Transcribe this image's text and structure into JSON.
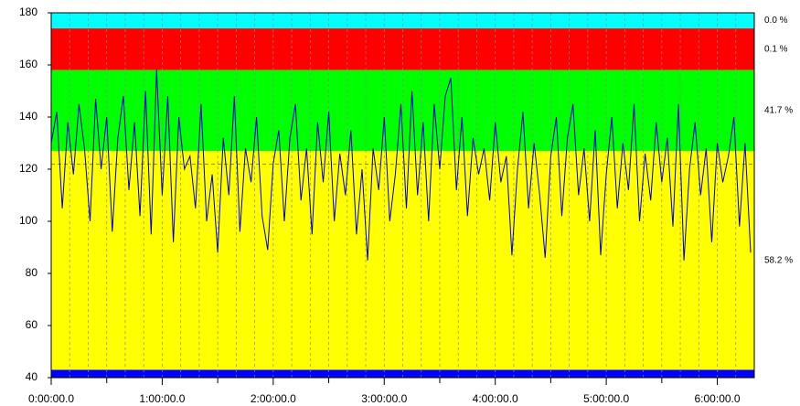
{
  "chart_data": {
    "type": "line",
    "xlim": [
      0,
      22800
    ],
    "ylim": [
      40,
      180
    ],
    "yticks": [
      40,
      60,
      80,
      100,
      120,
      140,
      160,
      180
    ],
    "xticks": [
      {
        "value": 0,
        "label": "0:00:00.0"
      },
      {
        "value": 3600,
        "label": "1:00:00.0"
      },
      {
        "value": 7200,
        "label": "2:00:00.0"
      },
      {
        "value": 10800,
        "label": "3:00:00.0"
      },
      {
        "value": 14400,
        "label": "4:00:00.0"
      },
      {
        "value": 18000,
        "label": "5:00:00.0"
      },
      {
        "value": 21600,
        "label": "6:00:00.0"
      }
    ],
    "xminor": [
      1800,
      5400,
      9000,
      12600,
      16200,
      19800
    ],
    "x_gridlines": [
      600,
      1200,
      1800,
      2400,
      3000,
      3600,
      4200,
      4800,
      5400,
      6000,
      6600,
      7200,
      7800,
      8400,
      9000,
      9600,
      10200,
      10800,
      11400,
      12000,
      12600,
      13200,
      13800,
      14400,
      15000,
      15600,
      16200,
      16800,
      17400,
      18000,
      18600,
      19200,
      19800,
      20400,
      21000,
      21600,
      22200
    ],
    "reference_line": 122,
    "zones": [
      {
        "from": 174,
        "to": 180,
        "color": "#00ffff",
        "label": "0.0 %"
      },
      {
        "from": 158,
        "to": 174,
        "color": "#ff0000",
        "label": "0.1 %"
      },
      {
        "from": 127,
        "to": 158,
        "color": "#00ff00",
        "label": "41.7 %"
      },
      {
        "from": 43,
        "to": 127,
        "color": "#ffff00",
        "label": "58.2 %"
      },
      {
        "from": 40,
        "to": 43,
        "color": "#0000ff"
      }
    ],
    "x": [
      0,
      180,
      360,
      540,
      720,
      900,
      1080,
      1260,
      1440,
      1620,
      1800,
      1980,
      2160,
      2340,
      2520,
      2700,
      2880,
      3060,
      3240,
      3420,
      3600,
      3780,
      3960,
      4140,
      4320,
      4500,
      4680,
      4860,
      5040,
      5220,
      5400,
      5580,
      5760,
      5940,
      6120,
      6300,
      6480,
      6660,
      6840,
      7020,
      7200,
      7380,
      7560,
      7740,
      7920,
      8100,
      8280,
      8460,
      8640,
      8820,
      9000,
      9180,
      9360,
      9540,
      9720,
      9900,
      10080,
      10260,
      10440,
      10620,
      10800,
      10980,
      11160,
      11340,
      11520,
      11700,
      11880,
      12060,
      12240,
      12420,
      12600,
      12780,
      12960,
      13140,
      13320,
      13500,
      13680,
      13860,
      14040,
      14220,
      14400,
      14580,
      14760,
      14940,
      15120,
      15300,
      15480,
      15660,
      15840,
      16020,
      16200,
      16380,
      16560,
      16740,
      16920,
      17100,
      17280,
      17460,
      17640,
      17820,
      18000,
      18180,
      18360,
      18540,
      18720,
      18900,
      19080,
      19260,
      19440,
      19620,
      19800,
      19980,
      20160,
      20340,
      20520,
      20700,
      20880,
      21060,
      21240,
      21420,
      21600,
      21780,
      21960,
      22140,
      22320,
      22500,
      22680
    ],
    "series": [
      {
        "color": "#0000cc",
        "values": [
          130,
          142,
          105,
          138,
          118,
          145,
          128,
          100,
          147,
          120,
          140,
          96,
          132,
          148,
          112,
          138,
          102,
          150,
          95,
          158,
          110,
          148,
          92,
          140,
          120,
          125,
          105,
          145,
          100,
          118,
          88,
          132,
          110,
          148,
          96,
          128,
          115,
          140,
          102,
          89,
          122,
          135,
          100,
          132,
          145,
          108,
          128,
          95,
          138,
          115,
          142,
          100,
          126,
          110,
          135,
          95,
          120,
          85,
          128,
          112,
          140,
          100,
          118,
          145,
          105,
          150,
          110,
          138,
          100,
          145,
          120,
          148,
          155,
          112,
          140,
          102,
          132,
          118,
          128,
          108,
          138,
          115,
          125,
          87,
          120,
          142,
          105,
          130,
          110,
          86,
          125,
          140,
          102,
          132,
          145,
          110,
          128,
          100,
          135,
          87,
          118,
          140,
          105,
          130,
          112,
          145,
          100,
          126,
          108,
          138,
          115,
          132,
          98,
          145,
          85,
          120,
          138,
          110,
          128,
          92,
          130,
          115,
          125,
          140,
          98,
          130,
          88
        ]
      }
    ]
  }
}
